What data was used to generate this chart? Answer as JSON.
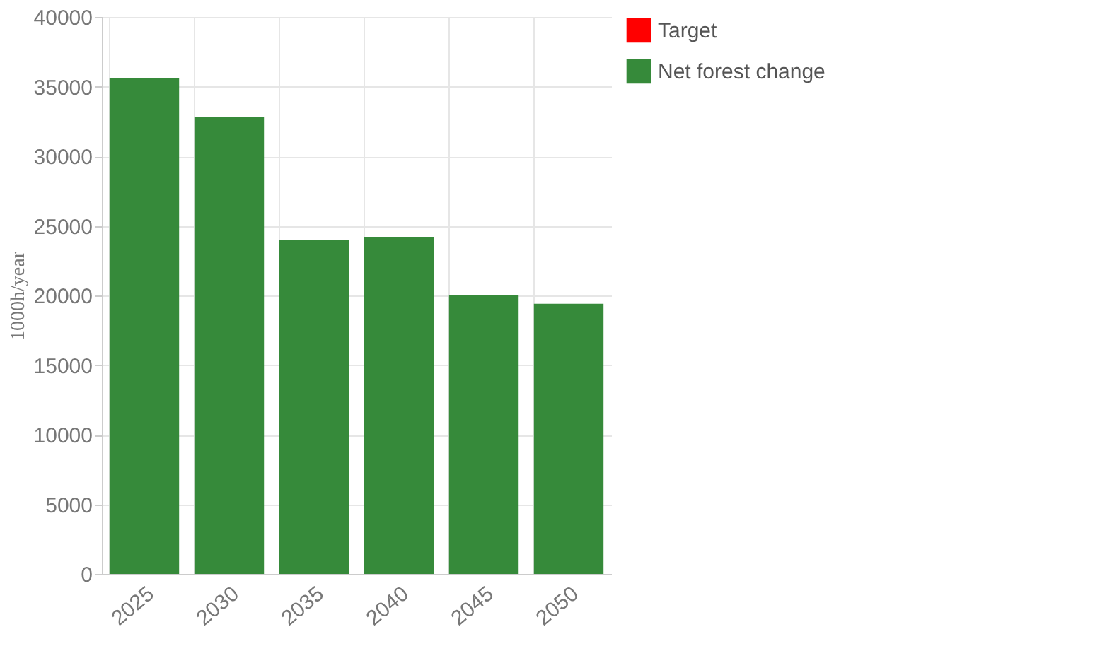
{
  "chart_data": {
    "type": "bar",
    "ylabel": "1000h/year",
    "categories": [
      "2025",
      "2030",
      "2035",
      "2040",
      "2045",
      "2050"
    ],
    "series": [
      {
        "name": "Target",
        "color": "#ff0000",
        "values": [
          null,
          null,
          null,
          null,
          null,
          null
        ]
      },
      {
        "name": "Net forest change",
        "color": "#368a3a",
        "values": [
          35600,
          32800,
          24000,
          24200,
          20000,
          19400
        ]
      }
    ],
    "ylim": [
      0,
      40000
    ],
    "yticks": [
      0,
      5000,
      10000,
      15000,
      20000,
      25000,
      30000,
      35000,
      40000
    ],
    "grid": true,
    "legend": "top right"
  }
}
